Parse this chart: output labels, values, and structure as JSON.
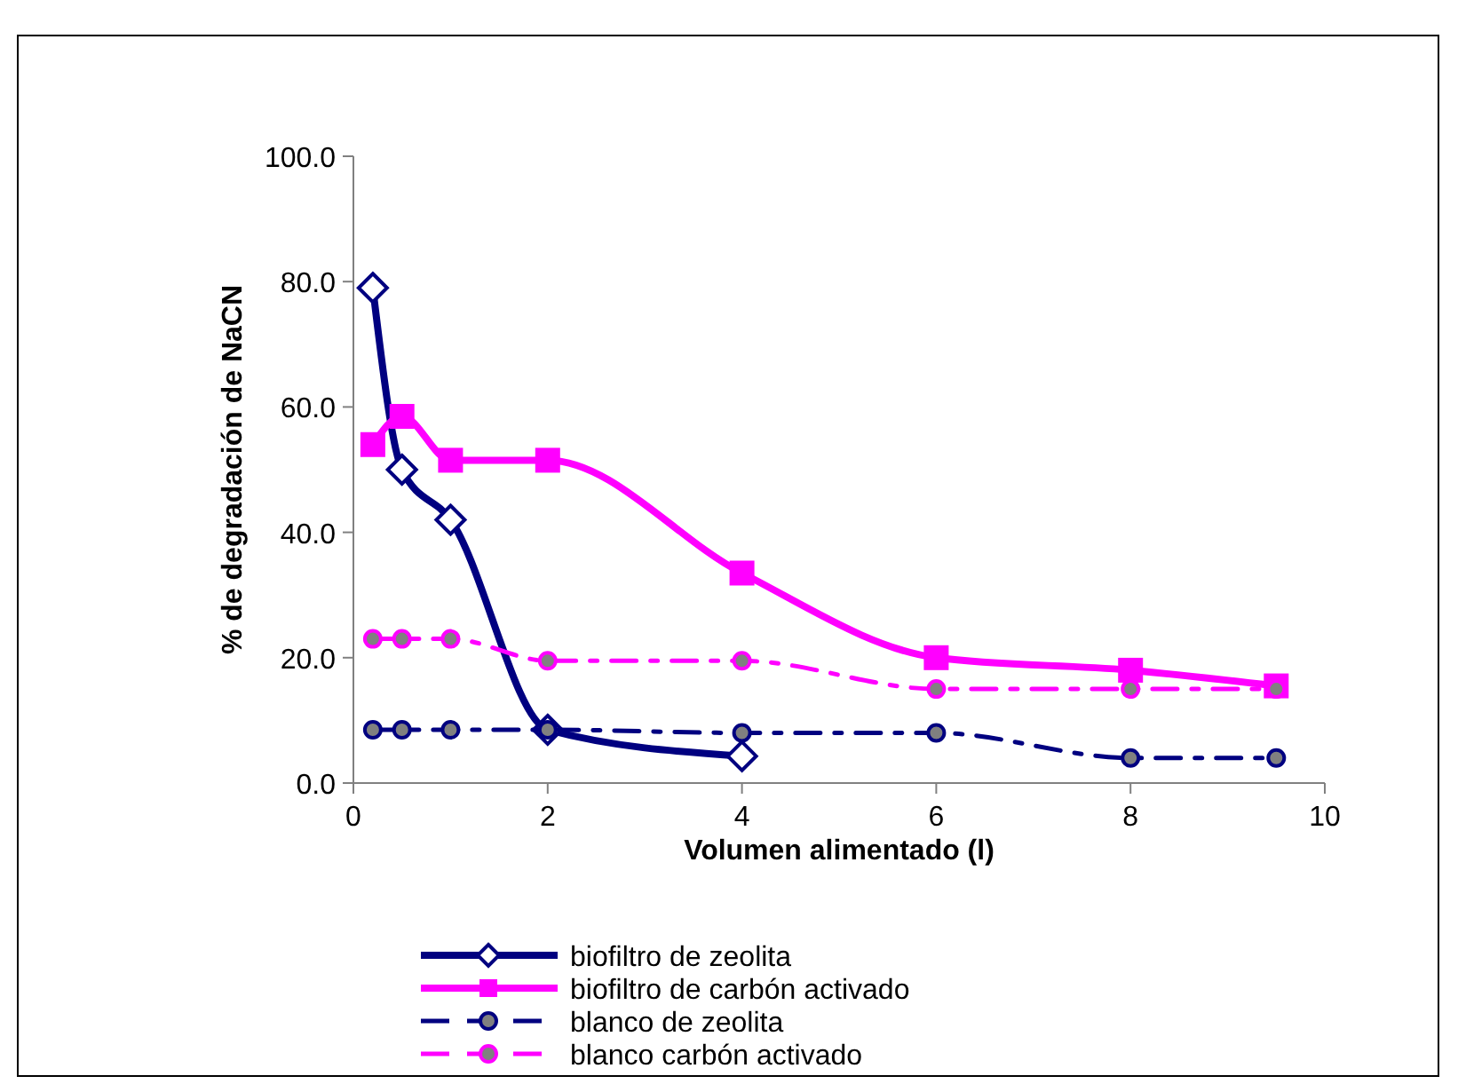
{
  "chart_data": {
    "type": "line",
    "xlabel": "Volumen alimentado (l)",
    "ylabel": "% de degradación de NaCN",
    "xlim": [
      0,
      10
    ],
    "xticks": [
      0,
      2,
      4,
      6,
      8,
      10
    ],
    "ylim": [
      0,
      100
    ],
    "yticks": [
      {
        "value": 0,
        "label": "0.0"
      },
      {
        "value": 20,
        "label": "20.0"
      },
      {
        "value": 40,
        "label": "40.0"
      },
      {
        "value": 60,
        "label": "60.0"
      },
      {
        "value": 80,
        "label": "80.0"
      },
      {
        "value": 100,
        "label": "100.0"
      }
    ],
    "grid": false,
    "legend": "bottom",
    "series": [
      {
        "name": "biofiltro de zeolita",
        "color": "#000080",
        "marker": "diamond",
        "line_style": "solid",
        "x": [
          0.2,
          0.5,
          1,
          2,
          4
        ],
        "values": [
          79,
          50,
          42,
          8.5,
          4.3
        ]
      },
      {
        "name": "biofiltro de carbón activado",
        "color": "#ff00ff",
        "marker": "square",
        "line_style": "solid",
        "x": [
          0.2,
          0.5,
          1,
          2,
          4,
          6,
          8,
          9.5
        ],
        "values": [
          54,
          58.5,
          51.5,
          51.5,
          33.5,
          20,
          18,
          15.5
        ]
      },
      {
        "name": "blanco de zeolita",
        "color": "#000080",
        "marker": "circle",
        "line_style": "dashed",
        "x": [
          0.2,
          0.5,
          1,
          2,
          4,
          6,
          8,
          9.5
        ],
        "values": [
          8.5,
          8.5,
          8.5,
          8.5,
          8,
          8,
          4,
          4
        ]
      },
      {
        "name": "blanco carbón activado",
        "color": "#ff00ff",
        "marker": "circle",
        "line_style": "dashed",
        "x": [
          0.2,
          0.5,
          1,
          2,
          4,
          6,
          8,
          9.5
        ],
        "values": [
          23,
          23,
          23,
          19.5,
          19.5,
          15,
          15,
          15
        ]
      }
    ]
  }
}
